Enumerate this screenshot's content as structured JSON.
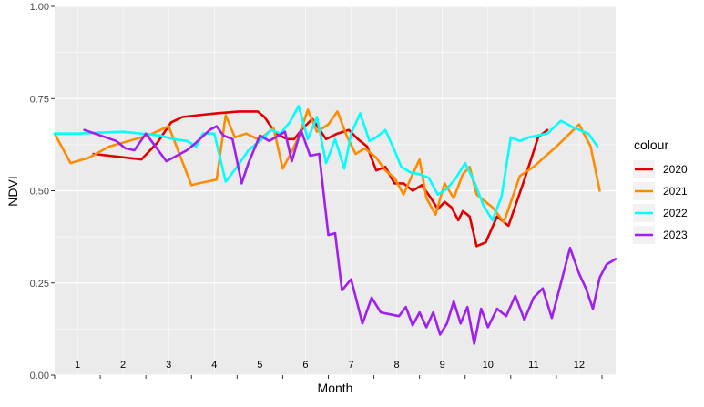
{
  "chart_data": {
    "type": "line",
    "xlabel": "Month",
    "ylabel": "NDVI",
    "xlim": [
      0,
      12.3
    ],
    "ylim": [
      0,
      1
    ],
    "y_ticks": [
      0.0,
      0.25,
      0.5,
      0.75,
      1.0
    ],
    "y_tick_labels": [
      "0.00",
      "0.25",
      "0.50",
      "0.75",
      "1.00"
    ],
    "month_labels": [
      "1",
      "2",
      "3",
      "4",
      "5",
      "6",
      "7",
      "8",
      "9",
      "10",
      "11",
      "12"
    ],
    "grid": true,
    "legend_title": "colour",
    "legend_position": "right",
    "series": [
      {
        "name": "2020",
        "color": "#e00000",
        "x": [
          0.85,
          1.9,
          2.25,
          2.55,
          2.8,
          3.15,
          3.55,
          4.05,
          4.45,
          4.6,
          4.85,
          5.1,
          5.25,
          5.45,
          5.65,
          5.95,
          6.2,
          6.45,
          6.65,
          6.85,
          7.05,
          7.25,
          7.45,
          7.65,
          7.85,
          8.05,
          8.25,
          8.4,
          8.55,
          8.7,
          8.85,
          8.95,
          9.1,
          9.25,
          9.45,
          9.7,
          9.95,
          10.3,
          10.6,
          10.8
        ],
        "y": [
          0.6,
          0.585,
          0.63,
          0.685,
          0.7,
          0.705,
          0.71,
          0.715,
          0.715,
          0.7,
          0.655,
          0.64,
          0.64,
          0.67,
          0.695,
          0.64,
          0.655,
          0.665,
          0.64,
          0.62,
          0.555,
          0.565,
          0.52,
          0.52,
          0.5,
          0.515,
          0.48,
          0.45,
          0.47,
          0.455,
          0.42,
          0.445,
          0.43,
          0.35,
          0.36,
          0.43,
          0.405,
          0.53,
          0.645,
          0.665
        ]
      },
      {
        "name": "2021",
        "color": "#ff8c00",
        "x": [
          0.0,
          0.35,
          0.75,
          1.2,
          2.05,
          2.5,
          3.0,
          3.15,
          3.35,
          3.55,
          3.75,
          3.95,
          4.2,
          4.45,
          4.6,
          4.8,
          5.0,
          5.15,
          5.35,
          5.55,
          5.75,
          6.0,
          6.2,
          6.4,
          6.6,
          6.8,
          7.05,
          7.25,
          7.45,
          7.65,
          7.85,
          8.0,
          8.15,
          8.35,
          8.55,
          8.75,
          8.95,
          9.1,
          9.25,
          9.4,
          9.6,
          9.85,
          10.2,
          10.5,
          11.0,
          11.5,
          11.75,
          11.95
        ],
        "y": [
          0.655,
          0.575,
          0.59,
          0.62,
          0.65,
          0.675,
          0.515,
          0.52,
          0.525,
          0.53,
          0.705,
          0.645,
          0.655,
          0.64,
          0.65,
          0.67,
          0.56,
          0.595,
          0.645,
          0.72,
          0.66,
          0.68,
          0.715,
          0.65,
          0.6,
          0.615,
          0.59,
          0.555,
          0.535,
          0.49,
          0.545,
          0.585,
          0.48,
          0.435,
          0.52,
          0.48,
          0.545,
          0.565,
          0.49,
          0.475,
          0.455,
          0.415,
          0.54,
          0.565,
          0.62,
          0.68,
          0.62,
          0.5
        ]
      },
      {
        "name": "2022",
        "color": "#00ffff",
        "x": [
          0.0,
          0.5,
          1.5,
          2.3,
          2.6,
          2.9,
          3.1,
          3.25,
          3.5,
          3.75,
          4.0,
          4.25,
          4.5,
          4.75,
          4.95,
          5.15,
          5.35,
          5.55,
          5.75,
          5.95,
          6.15,
          6.35,
          6.5,
          6.7,
          6.9,
          7.05,
          7.25,
          7.45,
          7.6,
          7.8,
          8.0,
          8.2,
          8.4,
          8.6,
          8.8,
          9.0,
          9.2,
          9.4,
          9.6,
          9.8,
          10.0,
          10.2,
          10.4,
          10.8,
          11.1,
          11.4,
          11.7,
          11.9
        ],
        "y": [
          0.655,
          0.655,
          0.66,
          0.65,
          0.64,
          0.635,
          0.62,
          0.655,
          0.655,
          0.525,
          0.565,
          0.61,
          0.635,
          0.665,
          0.655,
          0.685,
          0.73,
          0.64,
          0.7,
          0.575,
          0.64,
          0.56,
          0.655,
          0.71,
          0.635,
          0.645,
          0.665,
          0.61,
          0.565,
          0.55,
          0.545,
          0.535,
          0.49,
          0.505,
          0.535,
          0.575,
          0.525,
          0.46,
          0.42,
          0.485,
          0.645,
          0.635,
          0.645,
          0.655,
          0.69,
          0.67,
          0.655,
          0.62
        ]
      },
      {
        "name": "2023",
        "color": "#a020f0",
        "x": [
          0.65,
          1.35,
          1.55,
          1.75,
          2.0,
          2.45,
          2.9,
          3.05,
          3.4,
          3.55,
          3.7,
          3.9,
          4.1,
          4.25,
          4.5,
          4.7,
          4.85,
          5.05,
          5.2,
          5.4,
          5.6,
          5.8,
          6.0,
          6.15,
          6.3,
          6.5,
          6.75,
          6.95,
          7.15,
          7.35,
          7.55,
          7.7,
          7.85,
          8.0,
          8.15,
          8.3,
          8.45,
          8.6,
          8.75,
          8.9,
          9.05,
          9.2,
          9.35,
          9.5,
          9.7,
          9.9,
          10.1,
          10.3,
          10.5,
          10.7,
          10.9,
          11.1,
          11.3,
          11.5,
          11.65,
          11.8,
          11.95,
          12.1,
          12.3
        ],
        "y": [
          0.665,
          0.635,
          0.615,
          0.61,
          0.655,
          0.58,
          0.61,
          0.625,
          0.665,
          0.675,
          0.65,
          0.64,
          0.52,
          0.575,
          0.65,
          0.635,
          0.645,
          0.66,
          0.58,
          0.665,
          0.595,
          0.6,
          0.38,
          0.385,
          0.23,
          0.26,
          0.14,
          0.21,
          0.17,
          0.165,
          0.16,
          0.185,
          0.135,
          0.17,
          0.13,
          0.17,
          0.11,
          0.14,
          0.2,
          0.14,
          0.185,
          0.085,
          0.18,
          0.13,
          0.18,
          0.16,
          0.215,
          0.15,
          0.21,
          0.235,
          0.155,
          0.25,
          0.345,
          0.275,
          0.235,
          0.18,
          0.265,
          0.3,
          0.315
        ]
      }
    ]
  }
}
